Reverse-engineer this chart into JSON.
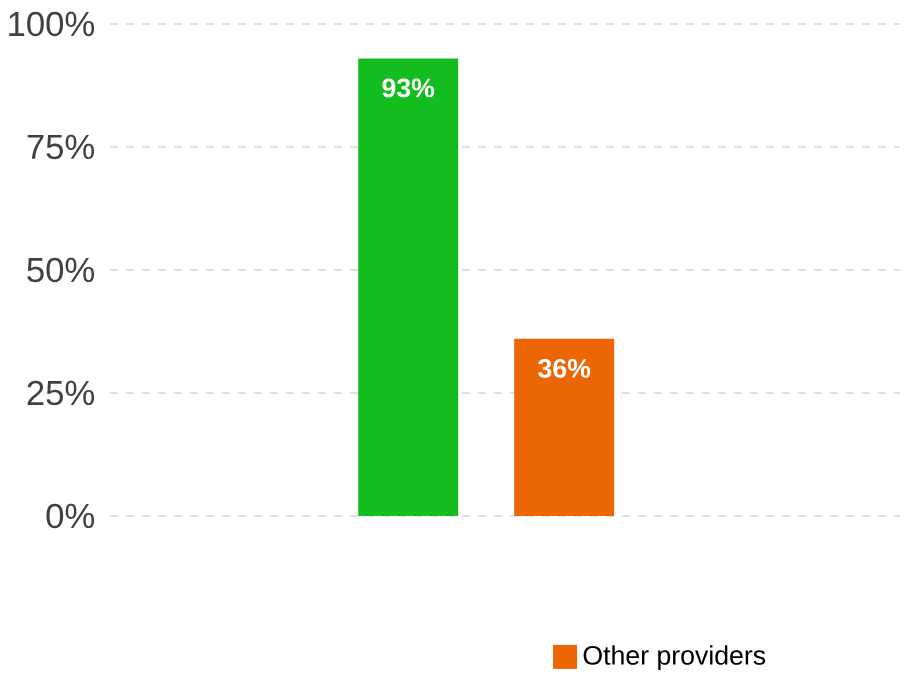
{
  "chart_data": {
    "type": "bar",
    "categories": [
      null
    ],
    "series": [
      {
        "color": "#13bd1f",
        "values": [
          93
        ],
        "value_labels": [
          "93%"
        ]
      },
      {
        "name": "Other providers",
        "color": "#ec6605",
        "values": [
          36
        ],
        "value_labels": [
          "36%"
        ]
      }
    ],
    "ylim": [
      0,
      100
    ],
    "yticks": [
      {
        "value": 0,
        "label": "0%"
      },
      {
        "value": 25,
        "label": "25%"
      },
      {
        "value": 50,
        "label": "50%"
      },
      {
        "value": 75,
        "label": "75%"
      },
      {
        "value": 100,
        "label": "100%"
      }
    ],
    "grid": "y",
    "legend": "bottom"
  }
}
